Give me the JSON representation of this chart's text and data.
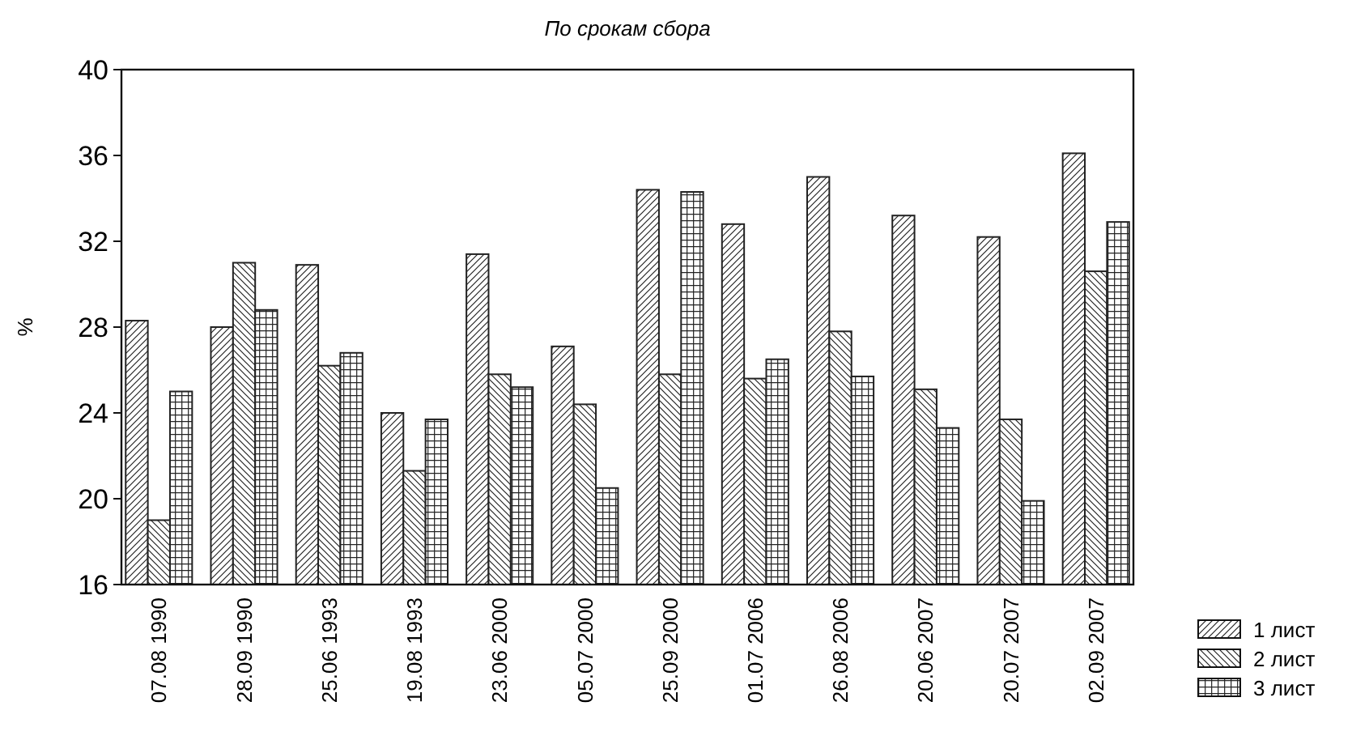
{
  "chart_data": {
    "type": "bar",
    "title": "По срокам сбора",
    "ylabel": "%",
    "categories": [
      "07.08 1990",
      "28.09 1990",
      "25.06 1993",
      "19.08 1993",
      "23.06 2000",
      "05.07 2000",
      "25.09 2000",
      "01.07 2006",
      "26.08 2006",
      "20.06 2007",
      "20.07 2007",
      "02.09 2007"
    ],
    "series": [
      {
        "name": "1 лист",
        "color": "#222222",
        "values": [
          28.3,
          28,
          30.9,
          24,
          31.4,
          27.1,
          34.4,
          32.8,
          35,
          33.2,
          32.2,
          36.1
        ]
      },
      {
        "name": "2 лист",
        "color": "#222222",
        "values": [
          19,
          31,
          26.2,
          21.3,
          25.8,
          24.4,
          25.8,
          25.6,
          27.8,
          25.1,
          23.7,
          30.6
        ]
      },
      {
        "name": "3 лист",
        "color": "#222222",
        "values": [
          25,
          28.8,
          26.8,
          23.7,
          25.2,
          20.5,
          34.3,
          26.5,
          25.7,
          23.3,
          19.9,
          32.9
        ]
      }
    ],
    "ylim": [
      16,
      40
    ],
    "yticks": [
      16,
      20,
      24,
      28,
      32,
      36,
      40
    ],
    "legend": "bottom right"
  }
}
